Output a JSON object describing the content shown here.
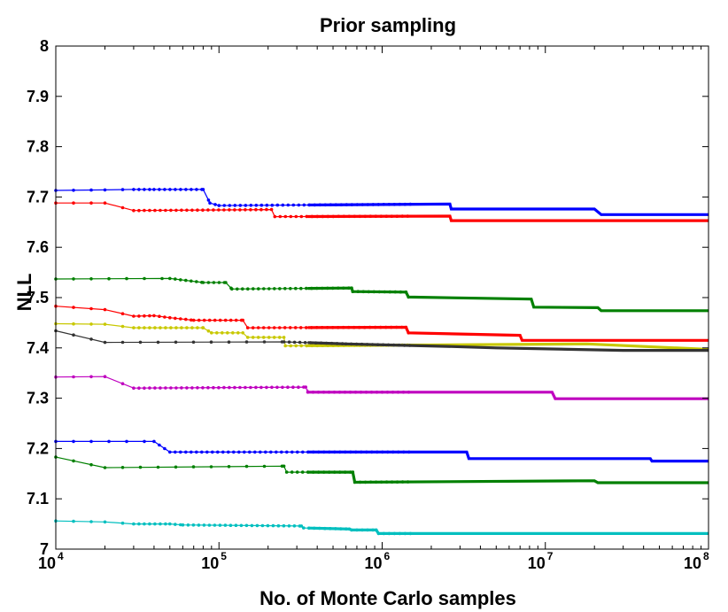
{
  "chart_data": {
    "type": "line",
    "title": "Prior sampling",
    "xlabel": "No. of Monte Carlo samples",
    "ylabel": "NLL",
    "xscale": "log",
    "xlim": [
      10000,
      100000000
    ],
    "ylim": [
      7,
      8
    ],
    "grid": false,
    "legend": "none",
    "x_ticks": [
      {
        "value": 10000,
        "base": "10",
        "exp": "4"
      },
      {
        "value": 100000,
        "base": "10",
        "exp": "5"
      },
      {
        "value": 1000000,
        "base": "10",
        "exp": "6"
      },
      {
        "value": 10000000,
        "base": "10",
        "exp": "7"
      },
      {
        "value": 100000000,
        "base": "10",
        "exp": "8"
      }
    ],
    "y_ticks": [
      {
        "value": 7,
        "label": "7"
      },
      {
        "value": 7.1,
        "label": "7.1"
      },
      {
        "value": 7.2,
        "label": "7.2"
      },
      {
        "value": 7.3,
        "label": "7.3"
      },
      {
        "value": 7.4,
        "label": "7.4"
      },
      {
        "value": 7.5,
        "label": "7.5"
      },
      {
        "value": 7.6,
        "label": "7.6"
      },
      {
        "value": 7.7,
        "label": "7.7"
      },
      {
        "value": 7.8,
        "label": "7.8"
      },
      {
        "value": 7.9,
        "label": "7.9"
      },
      {
        "value": 8,
        "label": "8"
      }
    ],
    "series": [
      {
        "name": "run-1-blue-top",
        "color": "#0000ff",
        "points": [
          [
            10000,
            7.713
          ],
          [
            20000,
            7.714
          ],
          [
            30000,
            7.715
          ],
          [
            40000,
            7.715
          ],
          [
            80000,
            7.715
          ],
          [
            88000,
            7.688
          ],
          [
            100000,
            7.683
          ],
          [
            2600000,
            7.686
          ],
          [
            2650000,
            7.676
          ],
          [
            20000000,
            7.676
          ],
          [
            22000000,
            7.665
          ],
          [
            100000000,
            7.665
          ]
        ]
      },
      {
        "name": "run-2-red-top",
        "color": "#ff0000",
        "points": [
          [
            10000,
            7.688
          ],
          [
            20000,
            7.688
          ],
          [
            30000,
            7.673
          ],
          [
            210000,
            7.675
          ],
          [
            220000,
            7.661
          ],
          [
            2600000,
            7.662
          ],
          [
            2650000,
            7.653
          ],
          [
            100000000,
            7.653
          ]
        ]
      },
      {
        "name": "run-3-green-upper",
        "color": "#008000",
        "points": [
          [
            10000,
            7.537
          ],
          [
            50000,
            7.538
          ],
          [
            80000,
            7.53
          ],
          [
            110000,
            7.53
          ],
          [
            120000,
            7.517
          ],
          [
            650000,
            7.519
          ],
          [
            660000,
            7.512
          ],
          [
            1400000,
            7.511
          ],
          [
            1450000,
            7.501
          ],
          [
            8200000,
            7.497
          ],
          [
            8500000,
            7.481
          ],
          [
            21000000,
            7.48
          ],
          [
            22000000,
            7.474
          ],
          [
            100000000,
            7.474
          ]
        ]
      },
      {
        "name": "run-4-red-middle",
        "color": "#ff0000",
        "points": [
          [
            10000,
            7.483
          ],
          [
            20000,
            7.476
          ],
          [
            30000,
            7.463
          ],
          [
            40000,
            7.464
          ],
          [
            50000,
            7.46
          ],
          [
            70000,
            7.455
          ],
          [
            140000,
            7.455
          ],
          [
            150000,
            7.44
          ],
          [
            1400000,
            7.441
          ],
          [
            1450000,
            7.43
          ],
          [
            7000000,
            7.425
          ],
          [
            7200000,
            7.415
          ],
          [
            100000000,
            7.415
          ]
        ]
      },
      {
        "name": "run-5-yellow",
        "color": "#c8c800",
        "points": [
          [
            10000,
            7.448
          ],
          [
            20000,
            7.447
          ],
          [
            30000,
            7.44
          ],
          [
            80000,
            7.44
          ],
          [
            90000,
            7.43
          ],
          [
            140000,
            7.43
          ],
          [
            150000,
            7.421
          ],
          [
            250000,
            7.421
          ],
          [
            255000,
            7.404
          ],
          [
            18000000,
            7.408
          ],
          [
            100000000,
            7.397
          ]
        ]
      },
      {
        "name": "run-6-black",
        "color": "#333333",
        "points": [
          [
            10000,
            7.434
          ],
          [
            20000,
            7.411
          ],
          [
            250000,
            7.412
          ],
          [
            600000,
            7.408
          ],
          [
            2500000,
            7.403
          ],
          [
            5000000,
            7.4
          ],
          [
            30000000,
            7.395
          ],
          [
            100000000,
            7.395
          ]
        ]
      },
      {
        "name": "run-7-magenta",
        "color": "#bf00bf",
        "points": [
          [
            10000,
            7.342
          ],
          [
            20000,
            7.343
          ],
          [
            30000,
            7.32
          ],
          [
            340000,
            7.322
          ],
          [
            350000,
            7.312
          ],
          [
            11000000,
            7.312
          ],
          [
            11500000,
            7.299
          ],
          [
            100000000,
            7.299
          ]
        ]
      },
      {
        "name": "run-8-blue-lower",
        "color": "#0000ff",
        "points": [
          [
            10000,
            7.214
          ],
          [
            40000,
            7.214
          ],
          [
            50000,
            7.193
          ],
          [
            3300000,
            7.193
          ],
          [
            3400000,
            7.18
          ],
          [
            44000000,
            7.18
          ],
          [
            45000000,
            7.175
          ],
          [
            100000000,
            7.175
          ]
        ]
      },
      {
        "name": "run-9-green-lower",
        "color": "#008000",
        "points": [
          [
            10000,
            7.183
          ],
          [
            20000,
            7.162
          ],
          [
            250000,
            7.165
          ],
          [
            260000,
            7.153
          ],
          [
            660000,
            7.153
          ],
          [
            680000,
            7.133
          ],
          [
            20000000,
            7.136
          ],
          [
            21000000,
            7.132
          ],
          [
            100000000,
            7.132
          ]
        ]
      },
      {
        "name": "run-10-cyan",
        "color": "#00bfbf",
        "points": [
          [
            10000,
            7.056
          ],
          [
            20000,
            7.054
          ],
          [
            30000,
            7.05
          ],
          [
            50000,
            7.05
          ],
          [
            60000,
            7.048
          ],
          [
            320000,
            7.046
          ],
          [
            330000,
            7.042
          ],
          [
            630000,
            7.04
          ],
          [
            650000,
            7.038
          ],
          [
            920000,
            7.038
          ],
          [
            950000,
            7.031
          ],
          [
            100000000,
            7.031
          ]
        ]
      }
    ]
  }
}
